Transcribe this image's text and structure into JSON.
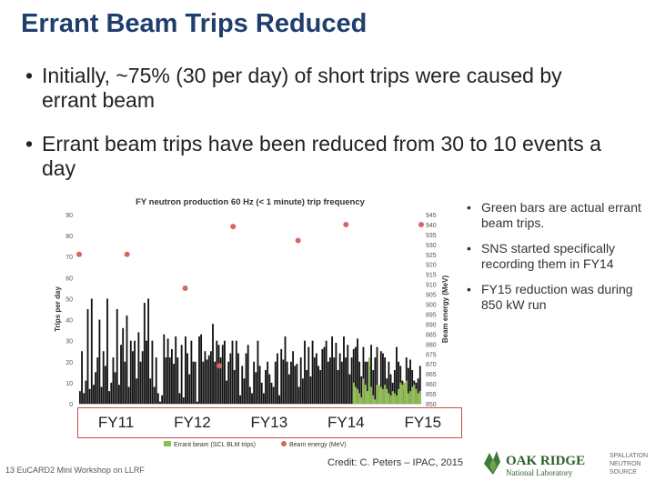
{
  "title": "Errant Beam Trips Reduced",
  "bullets": [
    "Initially, ~75% (30 per day) of short trips were caused by errant beam",
    "Errant beam trips have been reduced from 30 to 10 events a day"
  ],
  "side_notes": [
    "Green bars are actual errant beam trips.",
    "SNS started specifically recording them in FY14",
    "FY15 reduction was during 850 kW run"
  ],
  "fiscal_years": [
    "FY11",
    "FY12",
    "FY13",
    "FY14",
    "FY15"
  ],
  "footer": {
    "page_number": "13",
    "event": "EuCARD2 Mini Workshop on LLRF"
  },
  "credit": "Credit: C. Peters – IPAC, 2015",
  "logo": {
    "line1": "OAK RIDGE",
    "line2": "National Laboratory",
    "side1": "SPALLATION",
    "side2": "NEUTRON",
    "side3": "SOURCE"
  },
  "colors": {
    "title": "#1f3e6e",
    "bars": "#111111",
    "errant_bars": "#8fbf4f",
    "beam_points": "#d9645f",
    "fy_box": "#c0504d",
    "logo_green": "#3d7a3a"
  },
  "chart_data": {
    "type": "bar",
    "title": "FY neutron production 60 Hz (< 1 minute) trip frequency",
    "ylabel": "Trips per day",
    "y2label": "Beam energy (MeV)",
    "ylim": [
      0,
      90
    ],
    "yticks": [
      0,
      10,
      20,
      30,
      40,
      50,
      60,
      70,
      80,
      90
    ],
    "y2lim": [
      850,
      945
    ],
    "y2ticks": [
      850,
      855,
      860,
      865,
      870,
      875,
      880,
      885,
      890,
      895,
      900,
      905,
      910,
      915,
      920,
      925,
      930,
      935,
      940,
      945
    ],
    "legend": [
      "Errant beam (SCL BLM trips)",
      "Beam energy (MeV)"
    ],
    "legend_position": "bottom",
    "series": [
      {
        "name": "Trips per day",
        "values": [
          6,
          25,
          5,
          11,
          45,
          7,
          50,
          9,
          15,
          22,
          40,
          8,
          25,
          18,
          50,
          6,
          10,
          22,
          15,
          45,
          9,
          28,
          36,
          20,
          42,
          8,
          30,
          25,
          30,
          12,
          34,
          20,
          25,
          48,
          30,
          50,
          12,
          30,
          8,
          22,
          5,
          1,
          4,
          33,
          22,
          31,
          22,
          26,
          19,
          32,
          22,
          5,
          28,
          3,
          32,
          24,
          14,
          30,
          20,
          20,
          1,
          32,
          33,
          20,
          25,
          21,
          23,
          25,
          38,
          20,
          30,
          28,
          22,
          28,
          30,
          11,
          20,
          24,
          30,
          16,
          30,
          24,
          4,
          18,
          12,
          24,
          28,
          8,
          5,
          20,
          15,
          30,
          18,
          10,
          5,
          16,
          20,
          14,
          10,
          8,
          20,
          24,
          4,
          26,
          21,
          32,
          20,
          14,
          20,
          25,
          18,
          19,
          8,
          22,
          12,
          30,
          16,
          27,
          13,
          30,
          22,
          24,
          18,
          16,
          26,
          27,
          30,
          20,
          22,
          32,
          22,
          29,
          16,
          24,
          20,
          32,
          22,
          28,
          14,
          22,
          26,
          27,
          31,
          20,
          13,
          27,
          20,
          20,
          18,
          28,
          16,
          22,
          27,
          8,
          25,
          24,
          22,
          12,
          20,
          14,
          10,
          16,
          27,
          20,
          18,
          11,
          7,
          22,
          17,
          21,
          16,
          11,
          10,
          12,
          18
        ]
      },
      {
        "name": "Errant beam (SCL BLM trips)",
        "values": [
          0,
          0,
          0,
          0,
          0,
          0,
          0,
          0,
          0,
          0,
          0,
          0,
          0,
          0,
          0,
          0,
          0,
          0,
          0,
          0,
          0,
          0,
          0,
          0,
          0,
          0,
          0,
          0,
          0,
          0,
          0,
          0,
          0,
          0,
          0,
          0,
          0,
          0,
          0,
          0,
          0,
          0,
          0,
          0,
          0,
          0,
          0,
          0,
          0,
          0,
          0,
          0,
          0,
          0,
          0,
          0,
          0,
          0,
          0,
          0,
          0,
          0,
          0,
          0,
          0,
          0,
          0,
          0,
          0,
          0,
          0,
          0,
          0,
          0,
          0,
          0,
          0,
          0,
          0,
          0,
          0,
          0,
          0,
          0,
          0,
          0,
          0,
          0,
          0,
          0,
          0,
          0,
          0,
          0,
          0,
          0,
          0,
          0,
          0,
          0,
          0,
          0,
          0,
          0,
          0,
          0,
          0,
          0,
          0,
          0,
          0,
          0,
          0,
          0,
          0,
          0,
          0,
          0,
          0,
          0,
          0,
          0,
          0,
          0,
          0,
          0,
          0,
          0,
          0,
          0,
          0,
          0,
          0,
          0,
          0,
          0,
          0,
          0,
          0,
          0,
          10,
          8,
          7,
          5,
          3,
          12,
          9,
          6,
          22,
          8,
          4,
          2,
          9,
          9,
          8,
          7,
          9,
          7,
          5,
          4,
          6,
          5,
          4,
          7,
          10,
          9,
          10,
          11,
          5,
          6,
          8,
          9,
          7,
          5,
          6
        ]
      },
      {
        "name": "Beam energy (MeV)",
        "points": [
          [
            0.0,
            925
          ],
          [
            0.14,
            925
          ],
          [
            0.31,
            908
          ],
          [
            0.41,
            869
          ],
          [
            0.45,
            939
          ],
          [
            0.64,
            932
          ],
          [
            0.78,
            940
          ],
          [
            1.0,
            940
          ]
        ],
        "x_note": "fraction of time axis"
      }
    ]
  }
}
